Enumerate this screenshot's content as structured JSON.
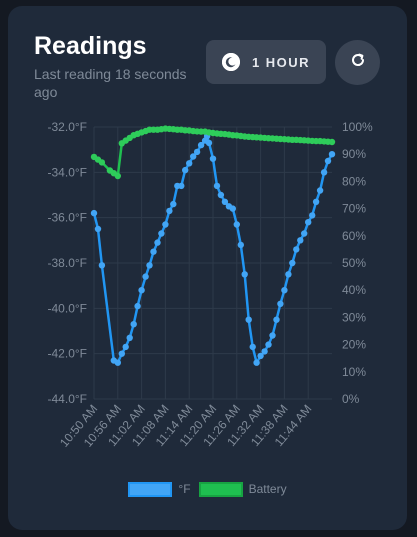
{
  "header": {
    "title": "Readings",
    "subtitle": "Last reading 18 seconds ago",
    "range_label": "1 HOUR",
    "range_icon": "moon-icon",
    "refresh_icon": "refresh-icon"
  },
  "colors": {
    "temp": "#2196f3",
    "temp_point": "#42a5f5",
    "battery": "#1fbf50",
    "battery_point": "#2ecc5a",
    "grid": "#2e3a4a",
    "tick": "#7f8a98"
  },
  "chart_data": {
    "type": "line",
    "x_ticks": [
      "10:50 AM",
      "10:56 AM",
      "11:02 AM",
      "11:08 AM",
      "11:14 AM",
      "11:20 AM",
      "11:26 AM",
      "11:32 AM",
      "11:38 AM",
      "11:44 AM"
    ],
    "y_left": {
      "ticks": [
        "-32.0°F",
        "-34.0°F",
        "-36.0°F",
        "-38.0°F",
        "-40.0°F",
        "-42.0°F",
        "-44.0°F"
      ],
      "range": [
        -44,
        -32
      ]
    },
    "y_right": {
      "ticks": [
        "100%",
        "90%",
        "80%",
        "70%",
        "60%",
        "50%",
        "40%",
        "30%",
        "20%",
        "10%",
        "0%"
      ],
      "range": [
        0,
        100
      ]
    },
    "grid": true,
    "legend_position": "bottom",
    "series": [
      {
        "name": "°F",
        "x_minutes": [
          0,
          1,
          2,
          5,
          6,
          7,
          8,
          9,
          10,
          11,
          12,
          13,
          14,
          15,
          16,
          17,
          18,
          19,
          20,
          21,
          22,
          23,
          24,
          25,
          26,
          27,
          28,
          28.5,
          29,
          30,
          31,
          32,
          33,
          34,
          35,
          36,
          37,
          38,
          39,
          40,
          41,
          42,
          43,
          44,
          45,
          46,
          47,
          48,
          49,
          50,
          51,
          52,
          53,
          54,
          55,
          56,
          57,
          58,
          59,
          60
        ],
        "values": [
          -35.8,
          -36.5,
          -38.1,
          -42.3,
          -42.4,
          -42.0,
          -41.7,
          -41.3,
          -40.7,
          -39.9,
          -39.2,
          -38.6,
          -38.1,
          -37.5,
          -37.1,
          -36.7,
          -36.3,
          -35.7,
          -35.4,
          -34.6,
          -34.6,
          -33.9,
          -33.6,
          -33.3,
          -33.1,
          -32.8,
          -32.6,
          -32.4,
          -32.7,
          -33.4,
          -34.6,
          -35.0,
          -35.3,
          -35.5,
          -35.6,
          -36.3,
          -37.2,
          -38.5,
          -40.5,
          -41.7,
          -42.4,
          -42.1,
          -41.9,
          -41.6,
          -41.2,
          -40.5,
          -39.8,
          -39.2,
          -38.5,
          -38.0,
          -37.4,
          -37.0,
          -36.7,
          -36.2,
          -35.9,
          -35.3,
          -34.8,
          -34.0,
          -33.5,
          -33.2
        ],
        "color": "#2196f3"
      },
      {
        "name": "Battery",
        "x_minutes": [
          0,
          1,
          2,
          4,
          5,
          6,
          7,
          8,
          9,
          10,
          11,
          12,
          13,
          14,
          15,
          16,
          17,
          18,
          19,
          20,
          21,
          22,
          23,
          24,
          25,
          26,
          27,
          28,
          29,
          30,
          31,
          32,
          33,
          34,
          35,
          36,
          37,
          38,
          39,
          40,
          41,
          42,
          43,
          44,
          45,
          46,
          47,
          48,
          49,
          50,
          51,
          52,
          53,
          54,
          55,
          56,
          57,
          58,
          59,
          60
        ],
        "values": [
          89,
          88,
          87,
          84,
          83,
          82,
          94,
          95,
          96,
          97,
          97.5,
          98,
          98.5,
          99,
          99,
          99,
          99.2,
          99.4,
          99.3,
          99.2,
          99,
          99,
          98.8,
          98.7,
          98.5,
          98.4,
          98.3,
          98.3,
          98,
          97.8,
          97.6,
          97.5,
          97.4,
          97.2,
          97,
          96.9,
          96.7,
          96.5,
          96.4,
          96.3,
          96.2,
          96.1,
          96,
          95.9,
          95.8,
          95.7,
          95.6,
          95.5,
          95.4,
          95.3,
          95.3,
          95.2,
          95.1,
          95.0,
          94.9,
          94.8,
          94.8,
          94.7,
          94.6,
          94.5
        ],
        "color": "#1fbf50"
      }
    ]
  }
}
